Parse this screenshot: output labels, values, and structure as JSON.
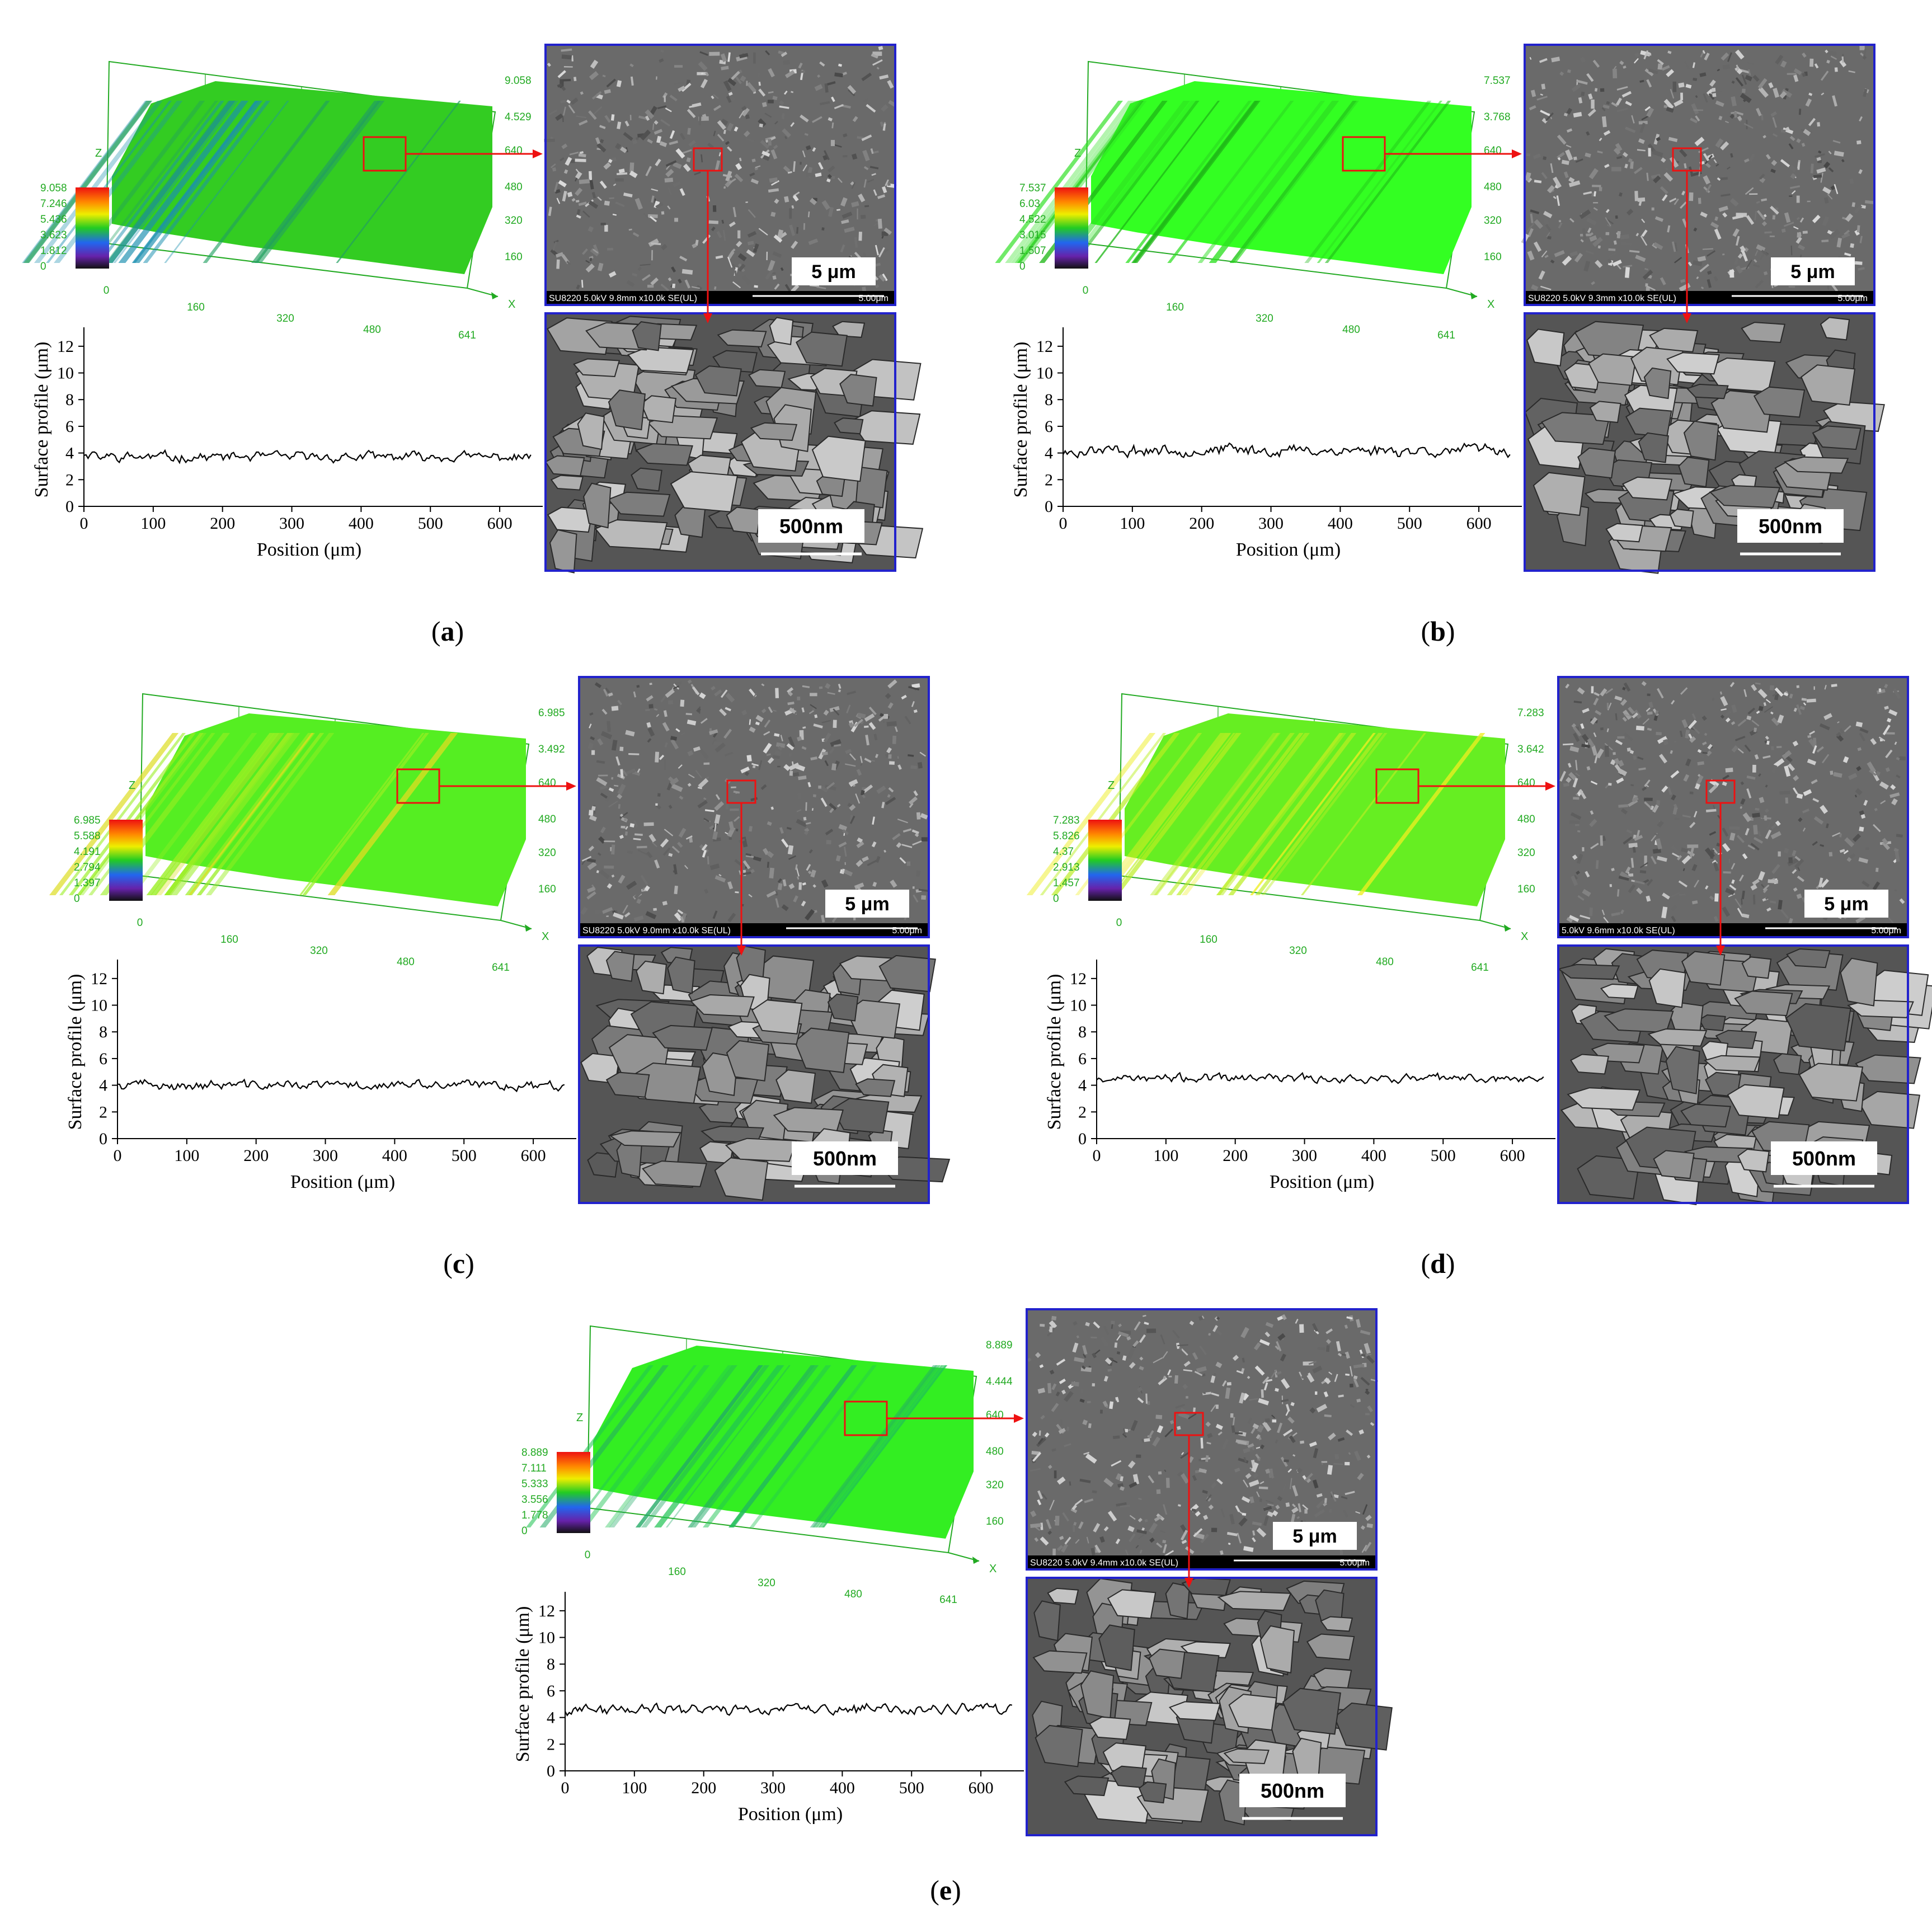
{
  "panels": [
    {
      "letter": "a",
      "scale3d": [
        "9.058",
        "7.246",
        "5.436",
        "3.623",
        "1.812",
        "0"
      ],
      "z_ticks": [
        "9.058",
        "4.529",
        "640",
        "480",
        "320",
        "160"
      ],
      "x_ticks": [
        "0",
        "160",
        "320",
        "480",
        "641"
      ],
      "axis_x": "X",
      "axis_z": "Z",
      "sem_low_info": "SU8220 5.0kV 9.8mm x10.0k SE(UL)",
      "sem_low_scale_small": "5.00μm",
      "sem_low_scale": "5 μm",
      "sem_high_scale": "500nm",
      "profile_base": 3.7,
      "profile_amp": 0.25,
      "seed": 11,
      "surface_colors": [
        "#33cc22",
        "#22a060",
        "#1b8fb0"
      ]
    },
    {
      "letter": "b",
      "scale3d": [
        "7.537",
        "6.03",
        "4.522",
        "3.015",
        "1.507",
        "0"
      ],
      "z_ticks": [
        "7.537",
        "3.768",
        "640",
        "480",
        "320",
        "160"
      ],
      "x_ticks": [
        "0",
        "160",
        "320",
        "480",
        "641"
      ],
      "axis_x": "X",
      "axis_z": "Z",
      "sem_low_info": "SU8220 5.0kV 9.3mm x10.0k SE(UL)",
      "sem_low_scale_small": "5.00μm",
      "sem_low_scale": "5 μm",
      "sem_high_scale": "500nm",
      "profile_base": 4.2,
      "profile_amp": 0.3,
      "seed": 23,
      "surface_colors": [
        "#33ff22",
        "#2ee022",
        "#1fb818"
      ]
    },
    {
      "letter": "c",
      "scale3d": [
        "6.985",
        "5.588",
        "4.191",
        "2.794",
        "1.397",
        "0"
      ],
      "z_ticks": [
        "6.985",
        "3.492",
        "640",
        "480",
        "320",
        "160"
      ],
      "x_ticks": [
        "0",
        "160",
        "320",
        "480",
        "641"
      ],
      "axis_x": "X",
      "axis_z": "Z",
      "sem_low_info": "SU8220 5.0kV 9.0mm x10.0k SE(UL)",
      "sem_low_scale_small": "5.00μm",
      "sem_low_scale": "5 μm",
      "sem_high_scale": "500nm",
      "profile_base": 4.0,
      "profile_amp": 0.25,
      "seed": 37,
      "surface_colors": [
        "#55ee22",
        "#99ee22",
        "#dddd22"
      ]
    },
    {
      "letter": "d",
      "scale3d": [
        "7.283",
        "5.826",
        "4.37",
        "2.913",
        "1.457",
        "0"
      ],
      "z_ticks": [
        "7.283",
        "3.642",
        "640",
        "480",
        "320",
        "160"
      ],
      "x_ticks": [
        "0",
        "160",
        "320",
        "480",
        "641"
      ],
      "axis_x": "X",
      "axis_z": "Z",
      "sem_low_info": "5.0kV 9.6mm x10.0k SE(UL)",
      "sem_low_scale_small": "5.00μm",
      "sem_low_scale": "5 μm",
      "sem_high_scale": "500nm",
      "profile_base": 4.5,
      "profile_amp": 0.22,
      "seed": 53,
      "surface_colors": [
        "#66ee22",
        "#bbee22",
        "#eeee22"
      ]
    },
    {
      "letter": "e",
      "scale3d": [
        "8.889",
        "7.111",
        "5.333",
        "3.556",
        "1.778",
        "0"
      ],
      "z_ticks": [
        "8.889",
        "4.444",
        "640",
        "480",
        "320",
        "160"
      ],
      "x_ticks": [
        "0",
        "160",
        "320",
        "480",
        "641"
      ],
      "axis_x": "X",
      "axis_z": "Z",
      "sem_low_info": "SU8220 5.0kV 9.4mm x10.0k SE(UL)",
      "sem_low_scale_small": "5.00μm",
      "sem_low_scale": "5 μm",
      "sem_high_scale": "500nm",
      "profile_base": 4.6,
      "profile_amp": 0.28,
      "seed": 71,
      "surface_colors": [
        "#33ee22",
        "#22c455",
        "#22aa66"
      ]
    }
  ],
  "chart_data": [
    {
      "type": "line",
      "panel": "a",
      "xlabel": "Position (μm)",
      "ylabel": "Surface profile (μm)",
      "xlim": [
        0,
        650
      ],
      "ylim": [
        0,
        13
      ],
      "xticks": [
        "0",
        "100",
        "200",
        "300",
        "400",
        "500",
        "600"
      ],
      "yticks": [
        "0",
        "2",
        "4",
        "6",
        "8",
        "10",
        "12"
      ],
      "series": [
        {
          "x": [
            0,
            650
          ],
          "y_mean": 3.7,
          "y_range": [
            3.3,
            4.3
          ]
        }
      ]
    },
    {
      "type": "line",
      "panel": "b",
      "xlabel": "Position (μm)",
      "ylabel": "Surface profile (μm)",
      "xlim": [
        0,
        650
      ],
      "ylim": [
        0,
        13
      ],
      "xticks": [
        "0",
        "100",
        "200",
        "300",
        "400",
        "500",
        "600"
      ],
      "yticks": [
        "0",
        "2",
        "4",
        "6",
        "8",
        "10",
        "12"
      ],
      "series": [
        {
          "x": [
            0,
            650
          ],
          "y_mean": 4.2,
          "y_range": [
            3.6,
            4.8
          ]
        }
      ]
    },
    {
      "type": "line",
      "panel": "c",
      "xlabel": "Position (μm)",
      "ylabel": "Surface profile (μm)",
      "xlim": [
        0,
        650
      ],
      "ylim": [
        0,
        13
      ],
      "xticks": [
        "0",
        "100",
        "200",
        "300",
        "400",
        "500",
        "600"
      ],
      "yticks": [
        "0",
        "2",
        "4",
        "6",
        "8",
        "10",
        "12"
      ],
      "series": [
        {
          "x": [
            0,
            650
          ],
          "y_mean": 4.0,
          "y_range": [
            3.5,
            4.6
          ]
        }
      ]
    },
    {
      "type": "line",
      "panel": "d",
      "xlabel": "Position (μm)",
      "ylabel": "Surface profile (μm)",
      "xlim": [
        0,
        650
      ],
      "ylim": [
        0,
        13
      ],
      "xticks": [
        "0",
        "100",
        "200",
        "300",
        "400",
        "500",
        "600"
      ],
      "yticks": [
        "0",
        "2",
        "4",
        "6",
        "8",
        "10",
        "12"
      ],
      "series": [
        {
          "x": [
            0,
            650
          ],
          "y_mean": 4.5,
          "y_range": [
            4.1,
            5.0
          ]
        }
      ]
    },
    {
      "type": "line",
      "panel": "e",
      "xlabel": "Position (μm)",
      "ylabel": "Surface profile (μm)",
      "xlim": [
        0,
        650
      ],
      "ylim": [
        0,
        13
      ],
      "xticks": [
        "0",
        "100",
        "200",
        "300",
        "400",
        "500",
        "600"
      ],
      "yticks": [
        "0",
        "2",
        "4",
        "6",
        "8",
        "10",
        "12"
      ],
      "series": [
        {
          "x": [
            0,
            650
          ],
          "y_mean": 4.6,
          "y_range": [
            4.2,
            5.1
          ]
        }
      ]
    }
  ],
  "colors": {
    "sem_border": "#2222cc",
    "highlight": "#ee1111",
    "axis_3d": "#22aa22",
    "profile_line": "#000000"
  }
}
